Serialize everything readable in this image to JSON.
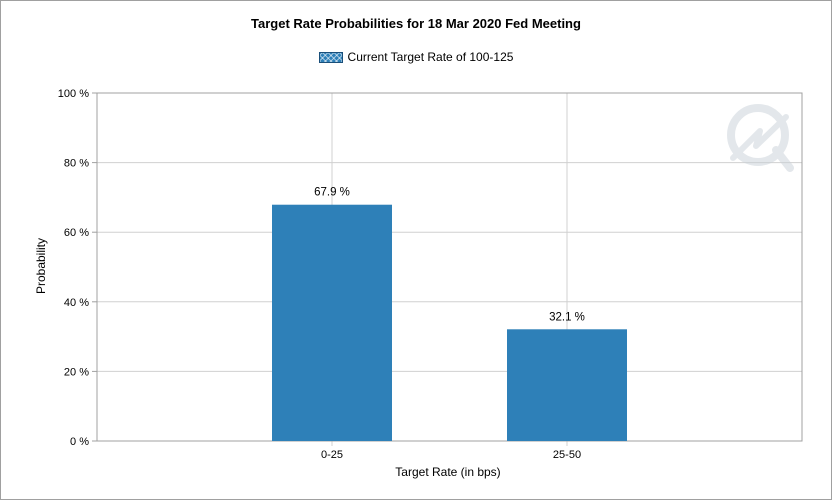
{
  "chart_data": {
    "type": "bar",
    "title": "Target Rate Probabilities for 18 Mar 2020 Fed Meeting",
    "xlabel": "Target Rate (in bps)",
    "ylabel": "Probability",
    "categories": [
      "0-25",
      "25-50"
    ],
    "series": [
      {
        "name": "Current Target Rate of 100-125",
        "values": [
          67.9,
          32.1
        ],
        "data_labels": [
          "67.9 %",
          "32.1 %"
        ],
        "color": "#2e80b8"
      }
    ],
    "y_ticks": [
      0,
      20,
      40,
      60,
      80,
      100
    ],
    "y_tick_labels": [
      "0 %",
      "20 %",
      "40 %",
      "60 %",
      "80 %",
      "100 %"
    ],
    "ylim": [
      0,
      100
    ],
    "grid": true,
    "legend_position": "top-center"
  },
  "colors": {
    "bar": "#2e80b8",
    "grid": "#d0d0d0",
    "axis": "#a0a0a0"
  },
  "watermark_icon": "cme-logo-icon"
}
